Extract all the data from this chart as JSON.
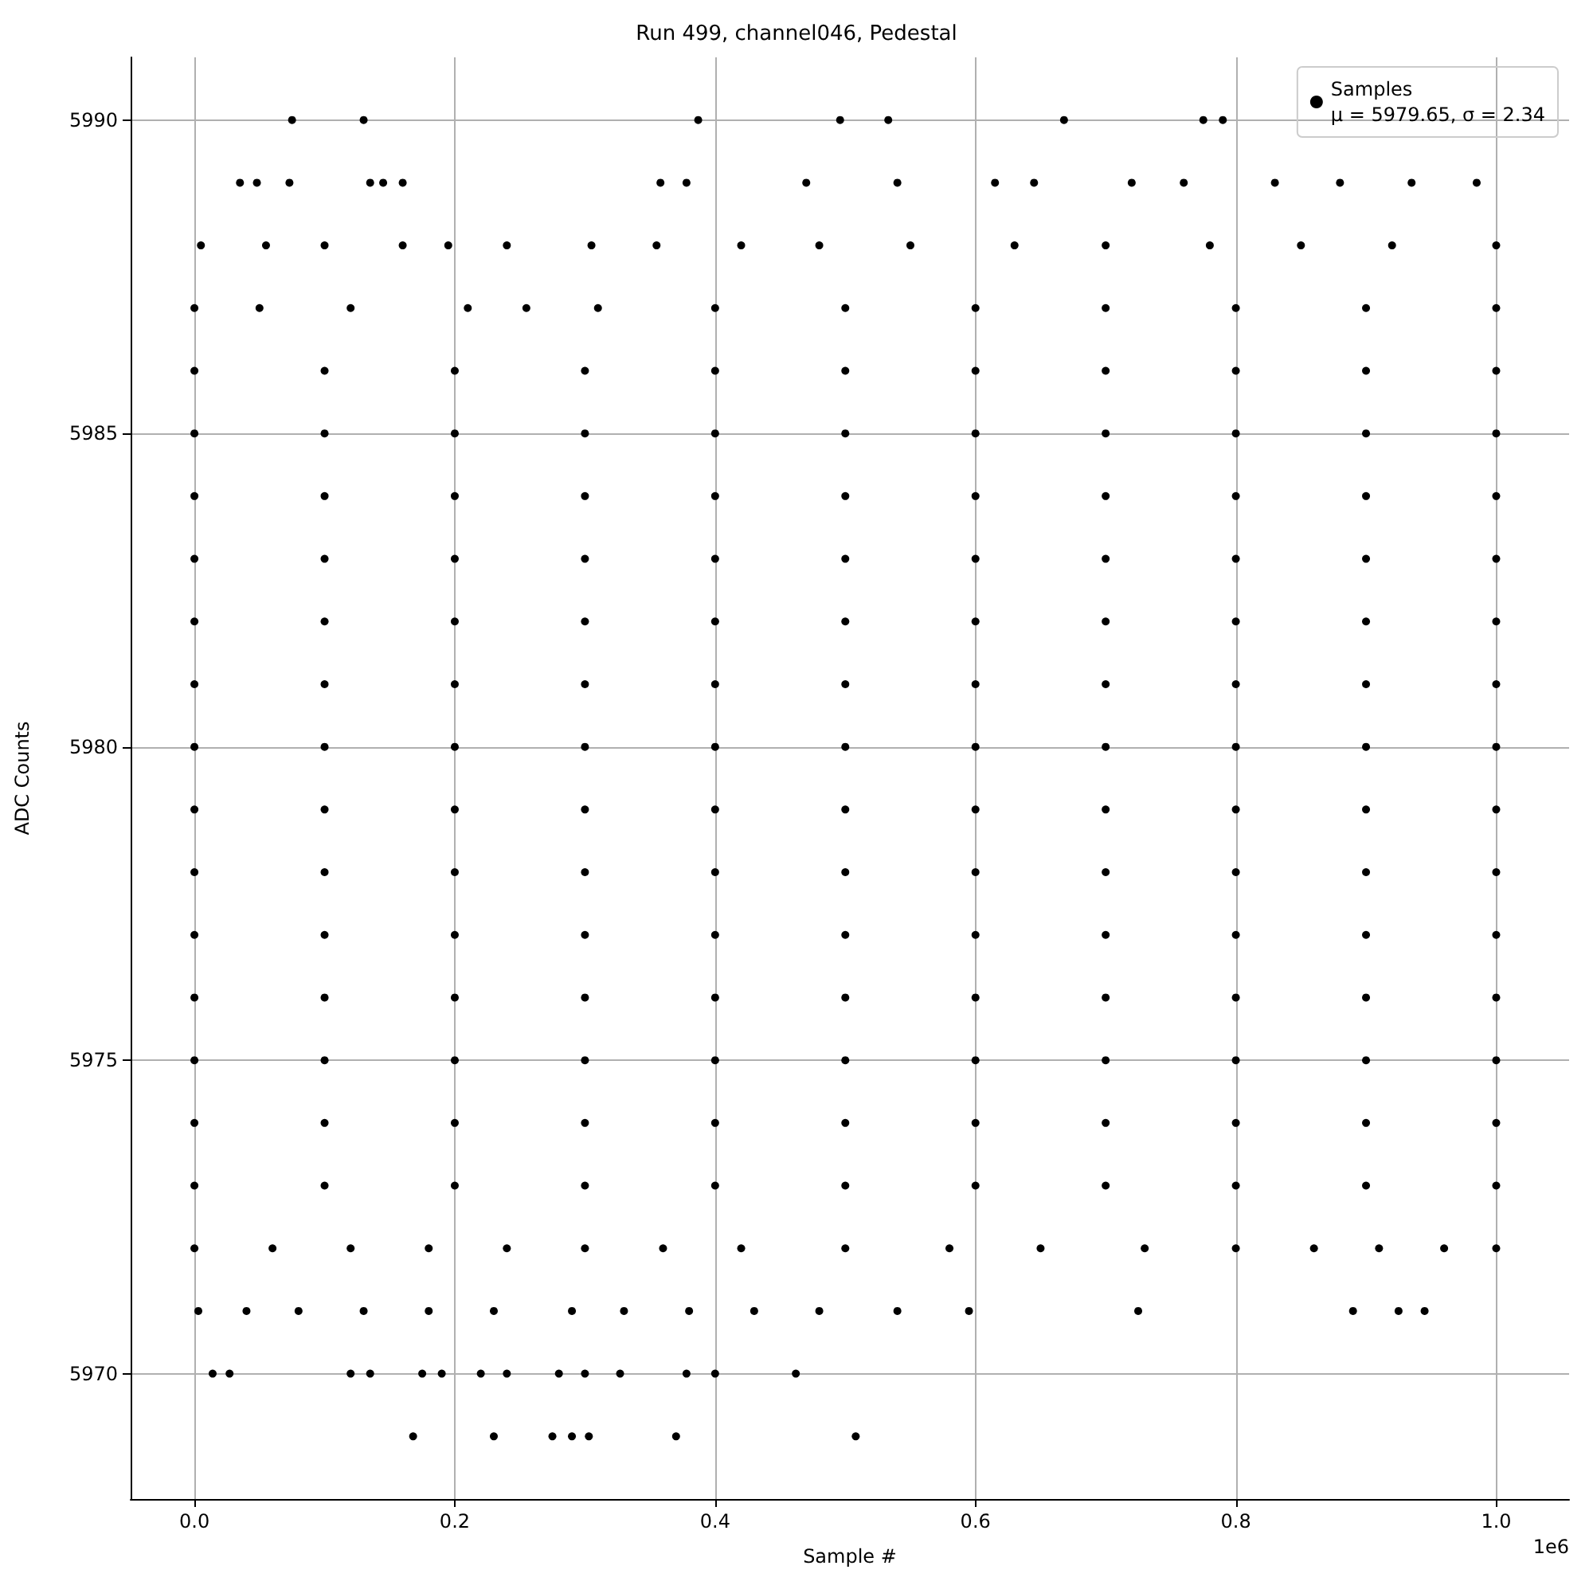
{
  "chart_data": {
    "type": "scatter",
    "title": "Run 499, channel046, Pedestal",
    "xlabel": "Sample #",
    "ylabel": "ADC Counts",
    "annotations": [
      "1e6"
    ],
    "xlim": [
      -0.049,
      1.056
    ],
    "ylim": [
      5968,
      5991
    ],
    "xticks": [
      {
        "value": 0,
        "label": "0.0"
      },
      0.2,
      0.4,
      0.6,
      0.8,
      {
        "value": 1,
        "label": "1.0"
      }
    ],
    "yticks": [
      5970,
      5975,
      5980,
      5985,
      5990
    ],
    "grid": true,
    "legend": "top right",
    "marker": "circle",
    "series": [
      {
        "name": "Samples\nμ = 5979.65, σ = 2.34",
        "color": "#000000",
        "x": [
          0.075,
          0.13,
          0.387,
          0.496,
          0.533,
          0.668,
          0.775,
          0.79,
          0.035,
          0.048,
          0.073,
          0.135,
          0.145,
          0.16,
          0.358,
          0.378,
          0.47,
          0.54,
          0.615,
          0.645,
          0.72,
          0.76,
          0.83,
          0.88,
          0.935,
          0.985,
          0.005,
          0.055,
          0.1,
          0.16,
          0.195,
          0.24,
          0.305,
          0.355,
          0.42,
          0.48,
          0.55,
          0.63,
          0.7,
          0.78,
          0.85,
          0.92,
          1.0,
          0,
          0.05,
          0.12,
          0.21,
          0.255,
          0.31,
          0.4,
          0.5,
          0.6,
          0.7,
          0.8,
          0.9,
          1.0,
          0,
          0.1,
          0.2,
          0.3,
          0.4,
          0.5,
          0.6,
          0.7,
          0.8,
          0.9,
          1.0,
          0,
          0.1,
          0.2,
          0.3,
          0.4,
          0.5,
          0.6,
          0.7,
          0.8,
          0.9,
          1.0,
          0,
          0.1,
          0.2,
          0.3,
          0.4,
          0.5,
          0.6,
          0.7,
          0.8,
          0.9,
          1.0,
          0,
          0.1,
          0.2,
          0.3,
          0.4,
          0.5,
          0.6,
          0.7,
          0.8,
          0.9,
          1.0,
          0,
          0.1,
          0.2,
          0.3,
          0.4,
          0.5,
          0.6,
          0.7,
          0.8,
          0.9,
          1.0,
          0,
          0.1,
          0.2,
          0.3,
          0.4,
          0.5,
          0.6,
          0.7,
          0.8,
          0.9,
          1.0,
          0,
          0.1,
          0.2,
          0.3,
          0.4,
          0.5,
          0.6,
          0.7,
          0.8,
          0.9,
          1.0,
          0,
          0.1,
          0.2,
          0.3,
          0.4,
          0.5,
          0.6,
          0.7,
          0.8,
          0.9,
          1.0,
          0,
          0.1,
          0.2,
          0.3,
          0.4,
          0.5,
          0.6,
          0.7,
          0.8,
          0.9,
          1.0,
          0,
          0.1,
          0.2,
          0.3,
          0.4,
          0.5,
          0.6,
          0.7,
          0.8,
          0.9,
          1.0,
          0,
          0.1,
          0.2,
          0.3,
          0.4,
          0.5,
          0.6,
          0.7,
          0.8,
          0.9,
          1.0,
          0,
          0.1,
          0.2,
          0.3,
          0.4,
          0.5,
          0.6,
          0.7,
          0.8,
          0.9,
          1.0,
          0,
          0.1,
          0.2,
          0.3,
          0.4,
          0.5,
          0.6,
          0.7,
          0.8,
          0.9,
          1.0,
          0,
          0.1,
          0.2,
          0.3,
          0.4,
          0.5,
          0.6,
          0.7,
          0.8,
          0.9,
          1.0,
          0,
          0.06,
          0.12,
          0.18,
          0.24,
          0.3,
          0.36,
          0.42,
          0.5,
          0.58,
          0.65,
          0.73,
          0.8,
          0.86,
          0.91,
          0.96,
          1.0,
          0.003,
          0.04,
          0.08,
          0.13,
          0.18,
          0.23,
          0.29,
          0.33,
          0.38,
          0.43,
          0.48,
          0.54,
          0.595,
          0.725,
          0.89,
          0.925,
          0.945,
          0.014,
          0.027,
          0.12,
          0.135,
          0.175,
          0.19,
          0.22,
          0.24,
          0.28,
          0.3,
          0.327,
          0.378,
          0.4,
          0.462,
          0.168,
          0.23,
          0.275,
          0.29,
          0.303,
          0.37,
          0.508
        ],
        "values": [
          5990,
          5990,
          5990,
          5990,
          5990,
          5990,
          5990,
          5990,
          5989,
          5989,
          5989,
          5989,
          5989,
          5989,
          5989,
          5989,
          5989,
          5989,
          5989,
          5989,
          5989,
          5989,
          5989,
          5989,
          5989,
          5989,
          5988,
          5988,
          5988,
          5988,
          5988,
          5988,
          5988,
          5988,
          5988,
          5988,
          5988,
          5988,
          5988,
          5988,
          5988,
          5988,
          5988,
          5987,
          5987,
          5987,
          5987,
          5987,
          5987,
          5987,
          5987,
          5987,
          5987,
          5987,
          5987,
          5987,
          5986,
          5986,
          5986,
          5986,
          5986,
          5986,
          5986,
          5986,
          5986,
          5986,
          5986,
          5985,
          5985,
          5985,
          5985,
          5985,
          5985,
          5985,
          5985,
          5985,
          5985,
          5985,
          5984,
          5984,
          5984,
          5984,
          5984,
          5984,
          5984,
          5984,
          5984,
          5984,
          5984,
          5983,
          5983,
          5983,
          5983,
          5983,
          5983,
          5983,
          5983,
          5983,
          5983,
          5983,
          5982,
          5982,
          5982,
          5982,
          5982,
          5982,
          5982,
          5982,
          5982,
          5982,
          5982,
          5981,
          5981,
          5981,
          5981,
          5981,
          5981,
          5981,
          5981,
          5981,
          5981,
          5981,
          5980,
          5980,
          5980,
          5980,
          5980,
          5980,
          5980,
          5980,
          5980,
          5980,
          5980,
          5979,
          5979,
          5979,
          5979,
          5979,
          5979,
          5979,
          5979,
          5979,
          5979,
          5979,
          5978,
          5978,
          5978,
          5978,
          5978,
          5978,
          5978,
          5978,
          5978,
          5978,
          5978,
          5977,
          5977,
          5977,
          5977,
          5977,
          5977,
          5977,
          5977,
          5977,
          5977,
          5977,
          5976,
          5976,
          5976,
          5976,
          5976,
          5976,
          5976,
          5976,
          5976,
          5976,
          5976,
          5975,
          5975,
          5975,
          5975,
          5975,
          5975,
          5975,
          5975,
          5975,
          5975,
          5975,
          5974,
          5974,
          5974,
          5974,
          5974,
          5974,
          5974,
          5974,
          5974,
          5974,
          5974,
          5973,
          5973,
          5973,
          5973,
          5973,
          5973,
          5973,
          5973,
          5973,
          5973,
          5973,
          5972,
          5972,
          5972,
          5972,
          5972,
          5972,
          5972,
          5972,
          5972,
          5972,
          5972,
          5972,
          5972,
          5972,
          5972,
          5972,
          5972,
          5971,
          5971,
          5971,
          5971,
          5971,
          5971,
          5971,
          5971,
          5971,
          5971,
          5971,
          5971,
          5971,
          5971,
          5971,
          5971,
          5971,
          5970,
          5970,
          5970,
          5970,
          5970,
          5970,
          5970,
          5970,
          5970,
          5970,
          5970,
          5970,
          5970,
          5970,
          5969,
          5969,
          5969,
          5969,
          5969,
          5969,
          5969
        ]
      }
    ]
  }
}
